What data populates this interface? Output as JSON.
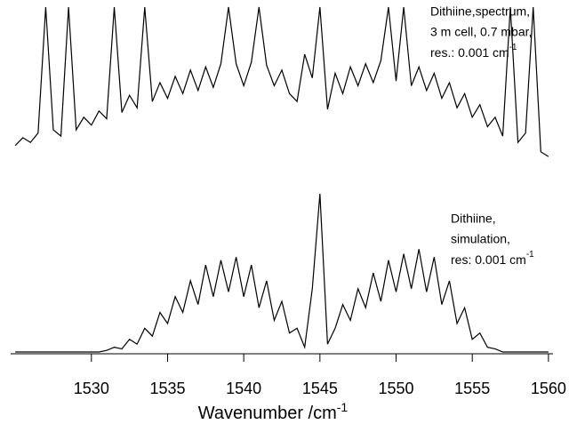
{
  "chart_data": [
    {
      "type": "line",
      "color": "#000000",
      "annotation": [
        "Dithiine,spectrum,",
        "3 m cell, 0.7 mbar,",
        "res.: 0.001 cm"
      ],
      "annotation_sup": "-1",
      "xlim": [
        1524.7,
        1560.3
      ],
      "ylim": [
        0,
        100
      ],
      "x": [
        1525,
        1525.5,
        1526,
        1526.5,
        1527,
        1527.5,
        1528,
        1528.5,
        1529,
        1529.5,
        1530,
        1530.5,
        1531,
        1531.5,
        1532,
        1532.5,
        1533,
        1533.5,
        1534,
        1534.5,
        1535,
        1535.5,
        1536,
        1536.5,
        1537,
        1537.5,
        1538,
        1538.5,
        1539,
        1539.5,
        1540,
        1540.5,
        1541,
        1541.5,
        1542,
        1542.5,
        1543,
        1543.5,
        1544,
        1544.5,
        1545,
        1545.5,
        1546,
        1546.5,
        1547,
        1547.5,
        1548,
        1548.5,
        1549,
        1549.5,
        1550,
        1550.5,
        1551,
        1551.5,
        1552,
        1552.5,
        1553,
        1553.5,
        1554,
        1554.5,
        1555,
        1555.5,
        1556,
        1556.5,
        1557,
        1557.5,
        1558,
        1558.5,
        1559,
        1559.5,
        1560
      ],
      "values": [
        12,
        17,
        14,
        20,
        100,
        22,
        18,
        100,
        22,
        30,
        25,
        34,
        29,
        100,
        33,
        44,
        36,
        100,
        40,
        52,
        42,
        56,
        45,
        60,
        47,
        62,
        49,
        64,
        100,
        64,
        50,
        65,
        100,
        63,
        50,
        60,
        45,
        40,
        70,
        55,
        100,
        35,
        58,
        45,
        62,
        50,
        64,
        52,
        66,
        100,
        53,
        100,
        50,
        62,
        47,
        58,
        42,
        52,
        36,
        45,
        30,
        38,
        24,
        30,
        18,
        100,
        14,
        20,
        100,
        8,
        5
      ]
    },
    {
      "type": "line",
      "color": "#000000",
      "annotation": [
        "Dithiine,",
        "simulation,",
        "res: 0.001 cm"
      ],
      "annotation_sup": "-1",
      "xlabel": "Wavenumber /cm",
      "xlabel_sup": "-1",
      "xlim": [
        1524.7,
        1560.3
      ],
      "ylim": [
        0,
        100
      ],
      "xticks": [
        1530,
        1535,
        1540,
        1545,
        1550,
        1555,
        1560
      ],
      "x": [
        1525,
        1525.5,
        1526,
        1526.5,
        1527,
        1527.5,
        1528,
        1528.5,
        1529,
        1529.5,
        1530,
        1530.5,
        1531,
        1531.5,
        1532,
        1532.5,
        1533,
        1533.5,
        1534,
        1534.5,
        1535,
        1535.5,
        1536,
        1536.5,
        1537,
        1537.5,
        1538,
        1538.5,
        1539,
        1539.5,
        1540,
        1540.5,
        1541,
        1541.5,
        1542,
        1542.5,
        1543,
        1543.5,
        1544,
        1544.5,
        1545,
        1545.5,
        1546,
        1546.5,
        1547,
        1547.5,
        1548,
        1548.5,
        1549,
        1549.5,
        1550,
        1550.5,
        1551,
        1551.5,
        1552,
        1552.5,
        1553,
        1553.5,
        1554,
        1554.5,
        1555,
        1555.5,
        1556,
        1556.5,
        1557,
        1557.5,
        1558,
        1558.5,
        1559,
        1559.5,
        1560
      ],
      "values": [
        0,
        0,
        0,
        0,
        0,
        0,
        0,
        0,
        0,
        0,
        0,
        0,
        1,
        3,
        2,
        8,
        5,
        15,
        10,
        25,
        18,
        35,
        25,
        45,
        30,
        55,
        35,
        58,
        38,
        60,
        35,
        55,
        28,
        45,
        20,
        32,
        12,
        15,
        3,
        40,
        100,
        5,
        15,
        30,
        20,
        40,
        28,
        50,
        32,
        58,
        38,
        62,
        40,
        65,
        38,
        60,
        30,
        45,
        18,
        28,
        8,
        12,
        3,
        2,
        0,
        0,
        0,
        0,
        0,
        0,
        0
      ]
    }
  ]
}
